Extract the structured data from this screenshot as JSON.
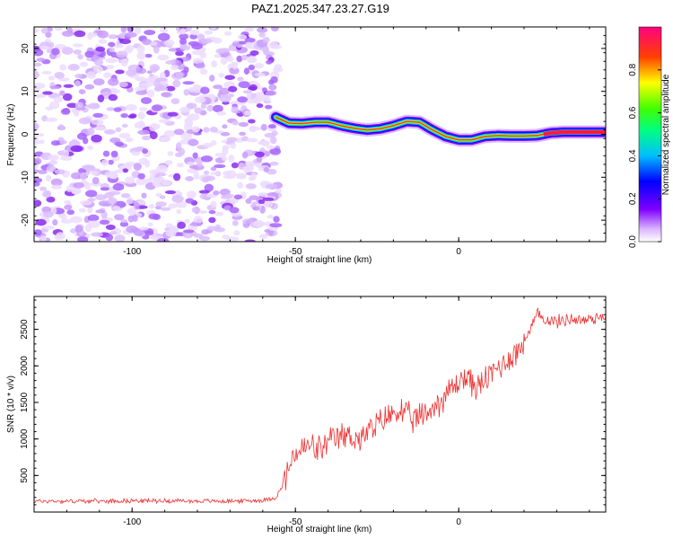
{
  "title": "PAZ1.2025.347.23.27.G19",
  "chart_data": [
    {
      "type": "heatmap",
      "xlabel": "Height of straight line (km)",
      "ylabel": "Frequency (Hz)",
      "xlim": [
        -130,
        45
      ],
      "ylim": [
        -25,
        25
      ],
      "x_ticks": [
        -100,
        -50,
        0
      ],
      "x_tick_labels": [
        "-100",
        "-50",
        "0"
      ],
      "y_ticks": [
        -20,
        -10,
        0,
        10,
        20
      ],
      "y_tick_labels": [
        "-20",
        "-10",
        "0",
        "10",
        "20"
      ],
      "noise_region_x": [
        -130,
        -54
      ],
      "ridge": {
        "x": [
          -56,
          -52,
          -48,
          -44,
          -40,
          -36,
          -32,
          -28,
          -24,
          -20,
          -16,
          -12,
          -8,
          -4,
          0,
          4,
          8,
          12,
          16,
          20,
          24,
          28,
          32,
          36,
          40,
          45
        ],
        "freq": [
          4,
          2.6,
          2.5,
          2.8,
          2.8,
          2.0,
          1.4,
          1.0,
          1.3,
          2.0,
          3.0,
          2.8,
          1.0,
          -0.5,
          -1.3,
          -1.3,
          -0.5,
          -0.3,
          -0.4,
          -0.4,
          -0.3,
          0.3,
          0.5,
          0.5,
          0.5,
          0.5
        ]
      },
      "colorbar": {
        "label": "Normalized spectral amplitude",
        "ticks": [
          0.0,
          0.2,
          0.4,
          0.6,
          0.8
        ],
        "tick_labels": [
          "0.0",
          "0.2",
          "0.4",
          "0.6",
          "0.8"
        ],
        "range": [
          0,
          1
        ]
      }
    },
    {
      "type": "line",
      "xlabel": "Height of straight line (km)",
      "ylabel": "SNR (10 * v/v)",
      "xlim": [
        -130,
        45
      ],
      "ylim": [
        0,
        2950
      ],
      "x_ticks": [
        -100,
        -50,
        0
      ],
      "x_tick_labels": [
        "-100",
        "-50",
        "0"
      ],
      "y_ticks": [
        500,
        1000,
        1500,
        2000,
        2500
      ],
      "y_tick_labels": [
        "500",
        "1000",
        "1500",
        "2000",
        "2500"
      ],
      "color": "#ee3333",
      "series": [
        {
          "name": "SNR",
          "x": [
            -130,
            -120,
            -110,
            -100,
            -90,
            -80,
            -70,
            -60,
            -56,
            -54,
            -52,
            -50,
            -46,
            -42,
            -38,
            -34,
            -30,
            -26,
            -22,
            -18,
            -14,
            -10,
            -6,
            -2,
            2,
            6,
            10,
            14,
            18,
            22,
            24,
            26,
            30,
            34,
            38,
            42,
            45
          ],
          "values": [
            150,
            150,
            150,
            155,
            155,
            150,
            150,
            160,
            200,
            350,
            600,
            800,
            900,
            850,
            1000,
            1050,
            1000,
            1150,
            1300,
            1400,
            1250,
            1350,
            1500,
            1700,
            1850,
            1700,
            1900,
            2050,
            2200,
            2500,
            2700,
            2650,
            2600,
            2650,
            2620,
            2660,
            2700
          ]
        }
      ]
    }
  ]
}
